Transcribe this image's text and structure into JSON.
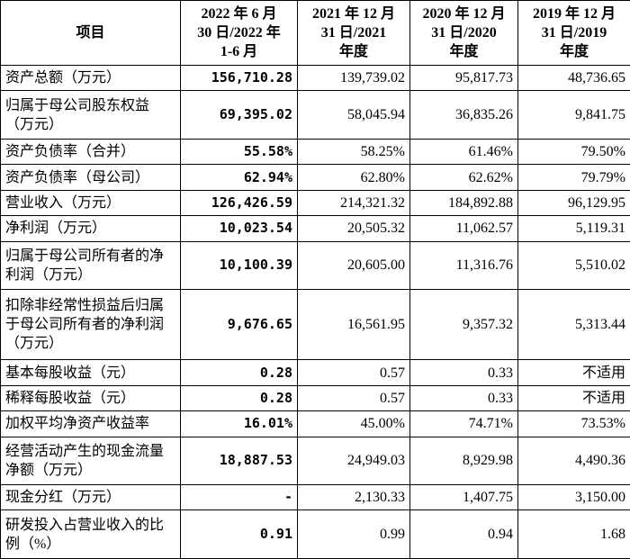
{
  "table": {
    "header": [
      [
        "项目"
      ],
      [
        "2022 年 6 月",
        "30 日/2022 年",
        "1-6 月"
      ],
      [
        "2021 年 12 月",
        "31 日/2021",
        "年度"
      ],
      [
        "2020 年 12 月",
        "31 日/2020",
        "年度"
      ],
      [
        "2019 年 12 月",
        "31 日/2019",
        "年度"
      ]
    ],
    "rows": [
      {
        "label": "资产总额（万元）",
        "values": [
          "156,710.28",
          "139,739.02",
          "95,817.73",
          "48,736.65"
        ]
      },
      {
        "label": "归属于母公司股东权益（万元）",
        "values": [
          "69,395.02",
          "58,045.94",
          "36,835.26",
          "9,841.75"
        ]
      },
      {
        "label": "资产负债率（合并）",
        "values": [
          "55.58%",
          "58.25%",
          "61.46%",
          "79.50%"
        ]
      },
      {
        "label": "资产负债率（母公司）",
        "values": [
          "62.94%",
          "62.80%",
          "62.62%",
          "79.79%"
        ]
      },
      {
        "label": "营业收入（万元）",
        "values": [
          "126,426.59",
          "214,321.32",
          "184,892.88",
          "96,129.95"
        ]
      },
      {
        "label": "净利润（万元）",
        "values": [
          "10,023.54",
          "20,505.32",
          "11,062.57",
          "5,119.31"
        ]
      },
      {
        "label": "归属于母公司所有者的净利润（万元）",
        "values": [
          "10,100.39",
          "20,605.00",
          "11,316.76",
          "5,510.02"
        ]
      },
      {
        "label": "扣除非经常性损益后归属于母公司所有者的净利润（万元）",
        "values": [
          "9,676.65",
          "16,561.95",
          "9,357.32",
          "5,313.44"
        ]
      },
      {
        "label": "基本每股收益（元）",
        "values": [
          "0.28",
          "0.57",
          "0.33",
          "不适用"
        ]
      },
      {
        "label": "稀释每股收益（元）",
        "values": [
          "0.28",
          "0.57",
          "0.33",
          "不适用"
        ]
      },
      {
        "label": "加权平均净资产收益率",
        "values": [
          "16.01%",
          "45.00%",
          "74.71%",
          "73.53%"
        ]
      },
      {
        "label": "经营活动产生的现金流量净额（万元）",
        "values": [
          "18,887.53",
          "24,949.03",
          "8,929.98",
          "4,490.36"
        ]
      },
      {
        "label": "现金分红（万元）",
        "values": [
          "-",
          "2,130.33",
          "1,407.75",
          "3,150.00"
        ]
      },
      {
        "label": "研发投入占营业收入的比例（%）",
        "values": [
          "0.91",
          "0.99",
          "0.94",
          "1.68"
        ]
      }
    ]
  }
}
